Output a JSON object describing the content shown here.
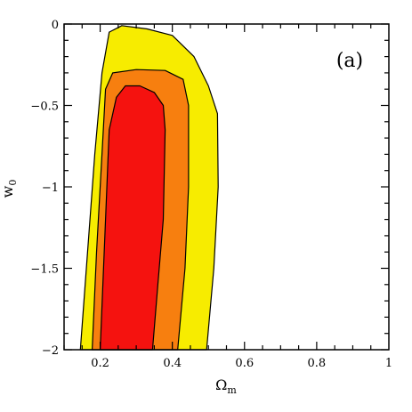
{
  "chart_data": {
    "type": "contour",
    "panel_label": "(a)",
    "xlabel": {
      "main": "Ω",
      "sub": "m"
    },
    "ylabel": {
      "main": "w",
      "sub": "0"
    },
    "xlim": [
      0.1,
      1.0
    ],
    "ylim": [
      -2.0,
      0.0
    ],
    "x_ticks": [
      {
        "value": 0.2,
        "label": "0.2"
      },
      {
        "value": 0.4,
        "label": "0.4"
      },
      {
        "value": 0.6,
        "label": "0.6"
      },
      {
        "value": 0.8,
        "label": "0.8"
      },
      {
        "value": 1.0,
        "label": "1"
      }
    ],
    "y_ticks": [
      {
        "value": 0.0,
        "label": "0"
      },
      {
        "value": -0.5,
        "label": "−0.5"
      },
      {
        "value": -1.0,
        "label": "−1"
      },
      {
        "value": -1.5,
        "label": "−1.5"
      },
      {
        "value": -2.0,
        "label": "−2"
      }
    ],
    "contours": [
      {
        "level": "outer",
        "color": "#f7ec00",
        "points": [
          [
            0.145,
            -2.0
          ],
          [
            0.165,
            -1.4
          ],
          [
            0.185,
            -0.8
          ],
          [
            0.205,
            -0.3
          ],
          [
            0.225,
            -0.05
          ],
          [
            0.26,
            -0.01
          ],
          [
            0.33,
            -0.03
          ],
          [
            0.4,
            -0.07
          ],
          [
            0.46,
            -0.2
          ],
          [
            0.5,
            -0.38
          ],
          [
            0.525,
            -0.55
          ],
          [
            0.527,
            -1.0
          ],
          [
            0.515,
            -1.5
          ],
          [
            0.495,
            -2.0
          ]
        ]
      },
      {
        "level": "middle",
        "color": "#f77f0f",
        "points": [
          [
            0.178,
            -2.0
          ],
          [
            0.19,
            -1.4
          ],
          [
            0.205,
            -0.8
          ],
          [
            0.215,
            -0.4
          ],
          [
            0.235,
            -0.3
          ],
          [
            0.3,
            -0.28
          ],
          [
            0.38,
            -0.285
          ],
          [
            0.43,
            -0.34
          ],
          [
            0.445,
            -0.5
          ],
          [
            0.445,
            -1.0
          ],
          [
            0.435,
            -1.5
          ],
          [
            0.415,
            -2.0
          ]
        ]
      },
      {
        "level": "inner",
        "color": "#f5120f",
        "points": [
          [
            0.2,
            -2.0
          ],
          [
            0.215,
            -1.2
          ],
          [
            0.225,
            -0.65
          ],
          [
            0.245,
            -0.45
          ],
          [
            0.27,
            -0.38
          ],
          [
            0.31,
            -0.38
          ],
          [
            0.35,
            -0.42
          ],
          [
            0.375,
            -0.5
          ],
          [
            0.38,
            -0.65
          ],
          [
            0.375,
            -1.2
          ],
          [
            0.36,
            -1.6
          ],
          [
            0.345,
            -2.0
          ]
        ]
      }
    ]
  }
}
